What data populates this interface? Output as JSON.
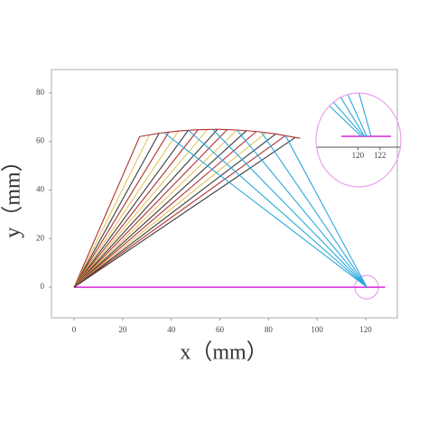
{
  "chart_data": [
    {
      "type": "line",
      "xlabel": "x（mm）",
      "ylabel": "y（mm）",
      "xlim": [
        -9.3,
        133
      ],
      "ylim": [
        -12.6,
        89.6
      ],
      "xticks": [
        0,
        20,
        40,
        60,
        80,
        100,
        120
      ],
      "yticks": [
        0,
        20,
        40,
        60,
        80
      ],
      "series": [
        {
          "color": "#e040e0",
          "x": [
            0,
            128
          ],
          "values": [
            0,
            0
          ]
        },
        {
          "color": "#b03030",
          "x": [
            0,
            27
          ],
          "values": [
            0,
            62.0
          ]
        },
        {
          "color": "#e8c45a",
          "x": [
            0,
            31
          ],
          "values": [
            0,
            62.7
          ]
        },
        {
          "color": "#3a3a3a",
          "x": [
            0,
            35
          ],
          "values": [
            0,
            63.4
          ]
        },
        {
          "color": "#b03030",
          "x": [
            0,
            39
          ],
          "values": [
            0,
            63.9
          ]
        },
        {
          "color": "#e8c45a",
          "x": [
            0,
            43
          ],
          "values": [
            0,
            64.3
          ]
        },
        {
          "color": "#3a3a3a",
          "x": [
            0,
            47
          ],
          "values": [
            0,
            64.6
          ]
        },
        {
          "color": "#b03030",
          "x": [
            0,
            51
          ],
          "values": [
            0,
            64.8
          ]
        },
        {
          "color": "#e8c45a",
          "x": [
            0,
            55
          ],
          "values": [
            0,
            65.0
          ]
        },
        {
          "color": "#3a3a3a",
          "x": [
            0,
            59
          ],
          "values": [
            0,
            65.0
          ]
        },
        {
          "color": "#b03030",
          "x": [
            0,
            63
          ],
          "values": [
            0,
            64.9
          ]
        },
        {
          "color": "#e8c45a",
          "x": [
            0,
            67
          ],
          "values": [
            0,
            64.7
          ]
        },
        {
          "color": "#3a3a3a",
          "x": [
            0,
            71
          ],
          "values": [
            0,
            64.5
          ]
        },
        {
          "color": "#b03030",
          "x": [
            0,
            75
          ],
          "values": [
            0,
            64.1
          ]
        },
        {
          "color": "#e8c45a",
          "x": [
            0,
            79
          ],
          "values": [
            0,
            63.6
          ]
        },
        {
          "color": "#3a3a3a",
          "x": [
            0,
            83
          ],
          "values": [
            0,
            63.1
          ]
        },
        {
          "color": "#b03030",
          "x": [
            0,
            87
          ],
          "values": [
            0,
            62.4
          ]
        },
        {
          "color": "#3a3a3a",
          "x": [
            0,
            91
          ],
          "values": [
            0,
            61.6
          ]
        },
        {
          "color": "#b03030",
          "x": [
            27,
            35,
            43,
            51,
            59,
            67,
            75,
            83,
            93
          ],
          "values": [
            62.0,
            63.4,
            64.3,
            64.8,
            65.0,
            64.7,
            64.1,
            63.1,
            61.3
          ]
        },
        {
          "color": "#2aa8dc",
          "x": [
            37,
            120.5
          ],
          "values": [
            63.6,
            0
          ]
        },
        {
          "color": "#2aa8dc",
          "x": [
            47,
            120.5
          ],
          "values": [
            64.6,
            0
          ]
        },
        {
          "color": "#2aa8dc",
          "x": [
            57,
            120.5
          ],
          "values": [
            65.0,
            0
          ]
        },
        {
          "color": "#2aa8dc",
          "x": [
            67,
            120.5
          ],
          "values": [
            64.7,
            0
          ]
        },
        {
          "color": "#2aa8dc",
          "x": [
            77,
            120.5
          ],
          "values": [
            63.9,
            0
          ]
        },
        {
          "color": "#2aa8dc",
          "x": [
            87,
            120.5
          ],
          "values": [
            62.4,
            0
          ]
        }
      ]
    },
    {
      "type": "line",
      "xlim": [
        116.2,
        123.9
      ],
      "ylim": [
        -1,
        5
      ],
      "xticks": [
        120,
        122
      ],
      "series": [
        {
          "color": "#e040e0",
          "x": [
            118.5,
            123
          ],
          "values": [
            0,
            0
          ]
        },
        {
          "color": "#2aa8dc",
          "x": [
            116.6,
            120.3
          ],
          "values": [
            3.6,
            0
          ]
        },
        {
          "color": "#2aa8dc",
          "x": [
            116.8,
            120.5
          ],
          "values": [
            4.3,
            0
          ]
        },
        {
          "color": "#2aa8dc",
          "x": [
            117.6,
            120.6
          ],
          "values": [
            5.0,
            0
          ]
        },
        {
          "color": "#2aa8dc",
          "x": [
            118.4,
            120.8
          ],
          "values": [
            5.4,
            0
          ]
        },
        {
          "color": "#2aa8dc",
          "x": [
            119.6,
            121.2
          ],
          "values": [
            5.8,
            0
          ]
        }
      ]
    }
  ]
}
